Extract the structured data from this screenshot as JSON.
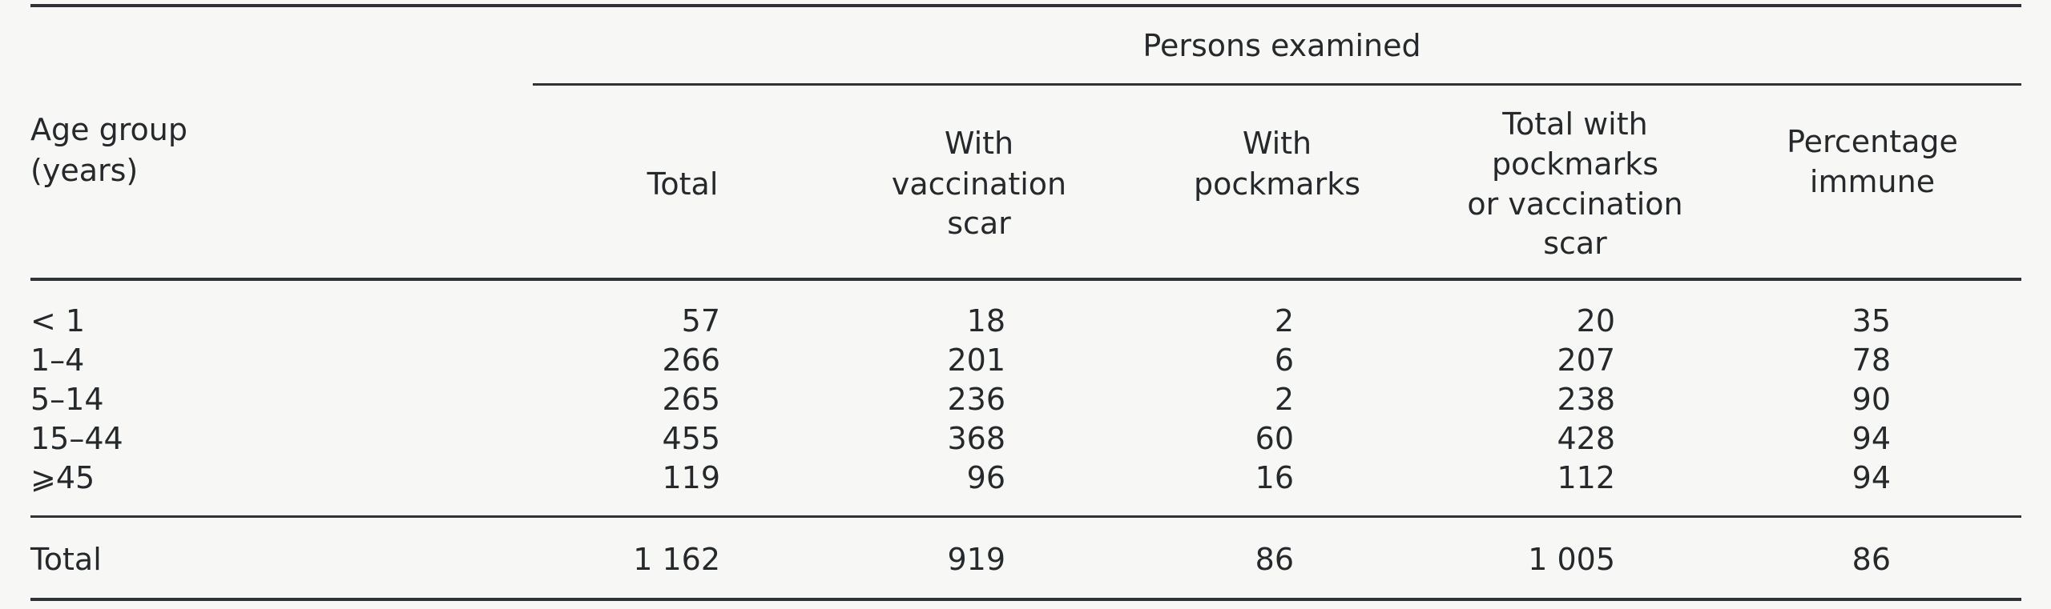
{
  "table": {
    "spanner": "Persons examined",
    "stub_header": [
      "Age group",
      "(years)"
    ],
    "columns": [
      {
        "label_lines": [
          "Total"
        ]
      },
      {
        "label_lines": [
          "With",
          "vaccination",
          "scar"
        ]
      },
      {
        "label_lines": [
          "With",
          "pockmarks"
        ]
      },
      {
        "label_lines": [
          "Total with",
          "pockmarks",
          "or vaccination",
          "scar"
        ]
      },
      {
        "label_lines": [
          "Percentage",
          "immune"
        ]
      }
    ],
    "rows": [
      {
        "age": "< 1",
        "values": [
          "57",
          "18",
          "2",
          "20",
          "35"
        ]
      },
      {
        "age": "1–4",
        "values": [
          "266",
          "201",
          "6",
          "207",
          "78"
        ]
      },
      {
        "age": "5–14",
        "values": [
          "265",
          "236",
          "2",
          "238",
          "90"
        ]
      },
      {
        "age": "15–44",
        "values": [
          "455",
          "368",
          "60",
          "428",
          "94"
        ]
      },
      {
        "age": "⩾45",
        "values": [
          "119",
          "96",
          "16",
          "112",
          "94"
        ]
      }
    ],
    "total": {
      "label": "Total",
      "values": [
        "1 162",
        "919",
        "86",
        "1 005",
        "86"
      ]
    }
  }
}
